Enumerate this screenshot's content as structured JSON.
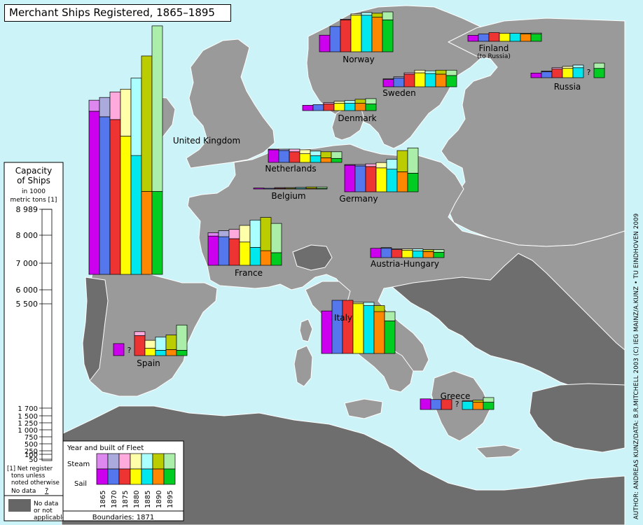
{
  "title": "Merchant Ships Registered, 1865–1895",
  "credit": "AUTHOR: ANDREAS KUNZ/DATA: B.R.MITCHELL  2003 (C) IEG MAINZ/A.KUNZ  •  TU EINDHOVEN 2009",
  "scale": {
    "title_line1": "Capacity",
    "title_line2": "of Ships",
    "units_line1": "in 1000",
    "units_line2": "metric tons [1]",
    "ticks": [
      "8 989",
      "8 000",
      "7 000",
      "6 000",
      "5 500",
      "1 700",
      "1 500",
      "1 250",
      "1 000",
      "750",
      "500",
      "250",
      "100",
      "50"
    ],
    "footnote_line1": "[1] Net register",
    "footnote_line2": "tons unless",
    "footnote_line3": "noted otherwise",
    "nodata_label": "No data",
    "nodata_symbol": "?"
  },
  "legend": {
    "title": "Year and built of Fleet",
    "steam_label": "Steam",
    "sail_label": "Sail",
    "years": [
      "1865",
      "1870",
      "1875",
      "1880",
      "1885",
      "1890",
      "1895"
    ],
    "sail_colors": [
      "#cc00ee",
      "#5577ee",
      "#ee3333",
      "#ffff00",
      "#00e8ee",
      "#ff8800",
      "#00cc22"
    ],
    "steam_colors": [
      "#dd88ee",
      "#aaaadd",
      "#ffaadd",
      "#ffffaa",
      "#aaffff",
      "#bbcc00",
      "#aaeeaa"
    ]
  },
  "nodata_box": {
    "label_line1": "No data",
    "label_line2": "or not",
    "label_line3": "applicable",
    "color": "#666666"
  },
  "boundaries": "Boundaries: 1871",
  "colors": {
    "sea": "#ccf4f8",
    "land": "#9a9a9a",
    "land_dark": "#6e6e6e",
    "border": "#ffffff"
  },
  "chart_data": {
    "type": "bar",
    "units": "1000 metric tons",
    "categories": [
      "1865",
      "1870",
      "1875",
      "1880",
      "1885",
      "1890",
      "1895"
    ],
    "countries": [
      {
        "name": "United Kingdom",
        "sail": [
          5900,
          5700,
          5600,
          5000,
          4300,
          3000,
          3000
        ],
        "steam": [
          400,
          700,
          1000,
          1700,
          2800,
          4900,
          5989
        ]
      },
      {
        "name": "Norway",
        "sail": [
          250,
          380,
          480,
          550,
          550,
          520,
          480
        ],
        "steam": [
          0,
          2,
          10,
          20,
          40,
          60,
          120
        ]
      },
      {
        "name": "Sweden",
        "sail": [
          110,
          130,
          190,
          210,
          200,
          190,
          170
        ],
        "steam": [
          10,
          20,
          20,
          40,
          40,
          60,
          80
        ]
      },
      {
        "name": "Finland",
        "name_note": "(to Russia)",
        "sail": [
          90,
          110,
          130,
          120,
          120,
          110,
          110
        ],
        "steam": [
          0,
          0,
          0,
          0,
          0,
          10,
          15
        ]
      },
      {
        "name": "Russia",
        "sail": [
          70,
          90,
          130,
          140,
          150,
          null,
          140
        ],
        "steam": [
          0,
          10,
          20,
          30,
          40,
          null,
          80
        ]
      },
      {
        "name": "Denmark",
        "sail": [
          80,
          90,
          100,
          110,
          110,
          110,
          100
        ],
        "steam": [
          0,
          0,
          20,
          30,
          40,
          60,
          80
        ]
      },
      {
        "name": "Netherlands",
        "sail": [
          190,
          180,
          160,
          130,
          100,
          70,
          60
        ],
        "steam": [
          10,
          20,
          40,
          60,
          70,
          90,
          100
        ]
      },
      {
        "name": "Belgium",
        "sail": [
          15,
          10,
          10,
          10,
          10,
          10,
          5
        ],
        "steam": [
          0,
          5,
          10,
          10,
          15,
          20,
          20
        ]
      },
      {
        "name": "Germany",
        "sail": [
          400,
          390,
          380,
          360,
          340,
          300,
          280
        ],
        "steam": [
          10,
          20,
          40,
          80,
          150,
          320,
          380
        ]
      },
      {
        "name": "France",
        "sail": [
          440,
          430,
          400,
          350,
          270,
          220,
          190
        ],
        "steam": [
          50,
          90,
          140,
          250,
          410,
          500,
          440
        ]
      },
      {
        "name": "Austria-Hungary",
        "sail": [
          140,
          140,
          120,
          110,
          100,
          90,
          80
        ],
        "steam": [
          0,
          10,
          10,
          20,
          30,
          30,
          40
        ]
      },
      {
        "name": "Italy",
        "sail": [
          640,
          800,
          800,
          750,
          720,
          630,
          490
        ],
        "steam": [
          0,
          0,
          0,
          20,
          50,
          90,
          140
        ]
      },
      {
        "name": "Spain",
        "sail": [
          180,
          null,
          300,
          110,
          80,
          90,
          80
        ],
        "steam": [
          0,
          null,
          60,
          120,
          200,
          220,
          380
        ]
      },
      {
        "name": "Greece",
        "sail": [
          160,
          150,
          150,
          null,
          120,
          110,
          110
        ],
        "steam": [
          0,
          0,
          0,
          null,
          10,
          30,
          70
        ]
      }
    ]
  }
}
